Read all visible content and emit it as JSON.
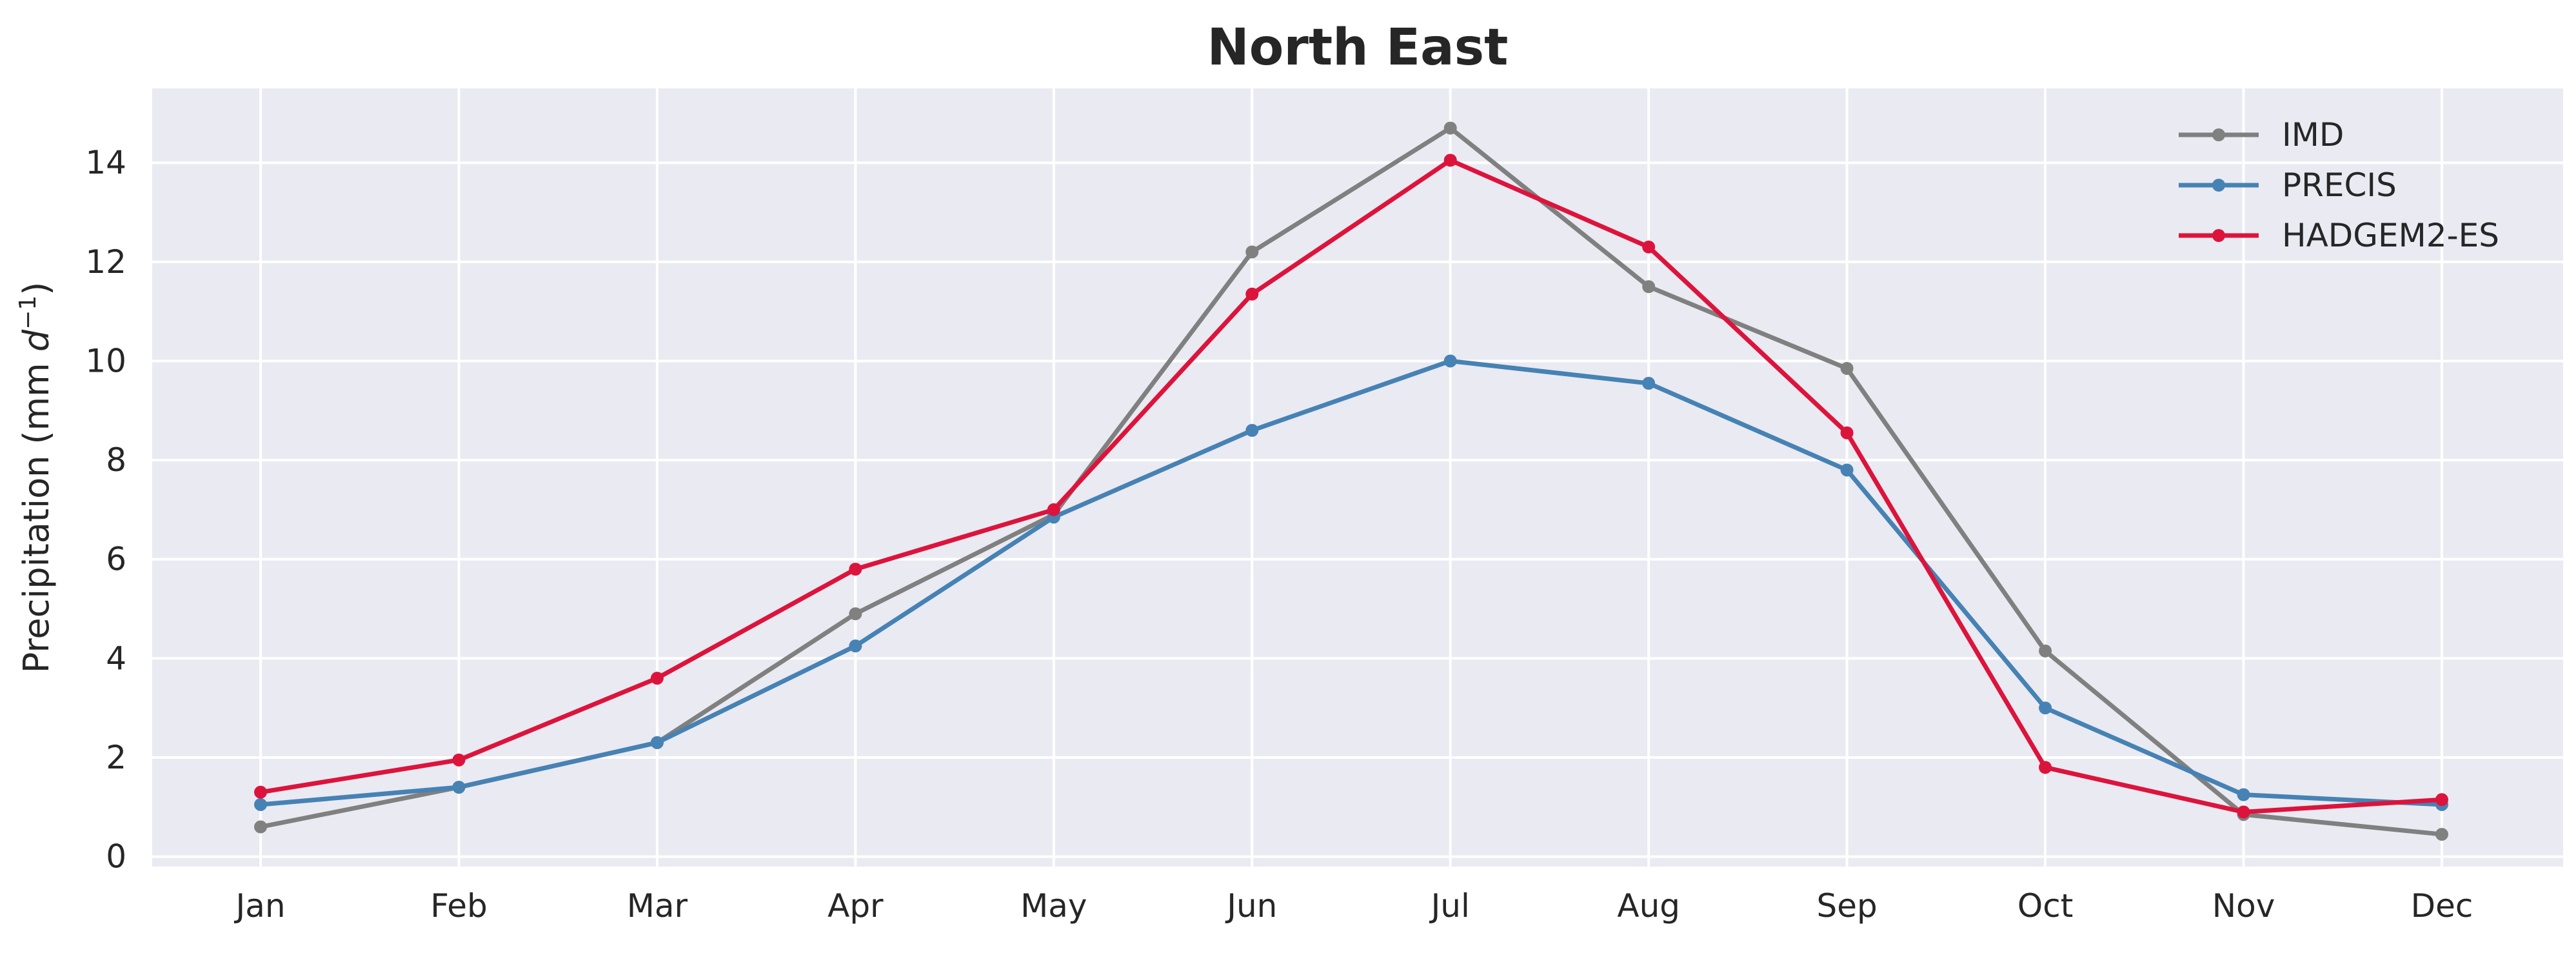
{
  "chart_data": {
    "type": "line",
    "title": "North East",
    "xlabel": "",
    "ylabel_main": "Precipitation (mm ",
    "ylabel_unit": "d",
    "ylabel_exp": "−1",
    "ylabel_close": ")",
    "categories": [
      "Jan",
      "Feb",
      "Mar",
      "Apr",
      "May",
      "Jun",
      "Jul",
      "Aug",
      "Sep",
      "Oct",
      "Nov",
      "Dec"
    ],
    "ylim": [
      -0.2,
      15.5
    ],
    "yticks": [
      0,
      2,
      4,
      6,
      8,
      10,
      12,
      14
    ],
    "grid": true,
    "legend_position": "top-right",
    "series": [
      {
        "name": "IMD",
        "color": "#808080",
        "values": [
          0.6,
          1.4,
          2.3,
          4.9,
          6.9,
          12.2,
          14.7,
          11.5,
          9.85,
          4.15,
          0.85,
          0.45
        ]
      },
      {
        "name": "PRECIS",
        "color": "#4682b4",
        "values": [
          1.05,
          1.4,
          2.3,
          4.25,
          6.85,
          8.6,
          10.0,
          9.55,
          7.8,
          3.0,
          1.25,
          1.05
        ]
      },
      {
        "name": "HADGEM2-ES",
        "color": "#dc143c",
        "values": [
          1.3,
          1.95,
          3.6,
          5.8,
          7.0,
          11.35,
          14.05,
          12.3,
          8.55,
          1.8,
          0.9,
          1.15
        ]
      }
    ]
  }
}
